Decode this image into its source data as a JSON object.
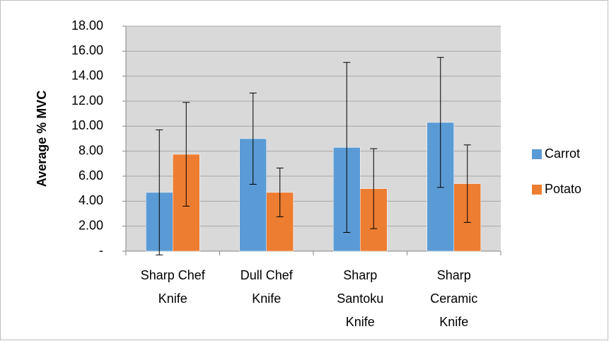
{
  "chart_data": {
    "type": "bar",
    "y_label": "Average % MVC",
    "categories": [
      "Sharp Chef Knife",
      "Dull Chef Knife",
      "Sharp Santoku Knife",
      "Sharp Ceramic Knife"
    ],
    "series": [
      {
        "name": "Carrot",
        "color": "#5b9bd5",
        "values": [
          4.7,
          9.0,
          8.3,
          10.3
        ],
        "errors": [
          5.0,
          3.65,
          6.8,
          5.2
        ]
      },
      {
        "name": "Potato",
        "color": "#ed7d31",
        "values": [
          7.75,
          4.7,
          5.0,
          5.4
        ],
        "errors": [
          4.15,
          1.95,
          3.2,
          3.1
        ]
      }
    ],
    "ylim": [
      0,
      18
    ],
    "yticks": [
      {
        "value": 0,
        "label": "-"
      },
      {
        "value": 2,
        "label": "2.00"
      },
      {
        "value": 4,
        "label": "4.00"
      },
      {
        "value": 6,
        "label": "6.00"
      },
      {
        "value": 8,
        "label": "8.00"
      },
      {
        "value": 10,
        "label": "10.00"
      },
      {
        "value": 12,
        "label": "12.00"
      },
      {
        "value": 14,
        "label": "14.00"
      },
      {
        "value": 16,
        "label": "16.00"
      },
      {
        "value": 18,
        "label": "18.00"
      }
    ],
    "grid": true,
    "legend": "right"
  }
}
